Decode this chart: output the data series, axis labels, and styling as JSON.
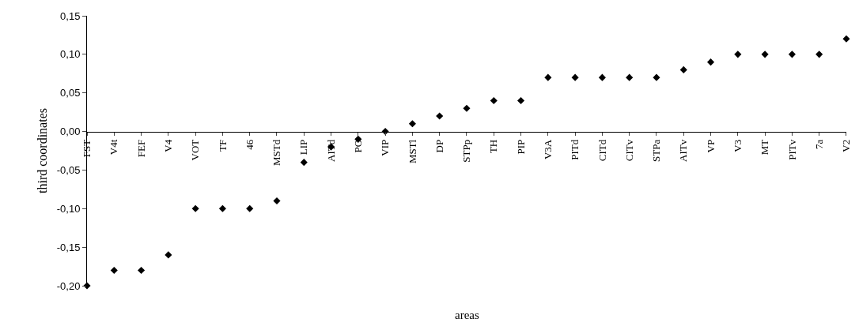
{
  "chart_data": {
    "type": "scatter",
    "xlabel": "areas",
    "ylabel": "third coordinates",
    "categories": [
      "FST",
      "V4t",
      "FEF",
      "V4",
      "VOT",
      "TF",
      "46",
      "MSTd",
      "LIP",
      "AITd",
      "PO",
      "VIP",
      "MSTl",
      "DP",
      "STPp",
      "TH",
      "PIP",
      "V3A",
      "PITd",
      "CITd",
      "CITv",
      "STPa",
      "AITv",
      "VP",
      "V3",
      "MT",
      "PITv",
      "7a",
      "V2"
    ],
    "values": [
      -0.2,
      -0.18,
      -0.18,
      -0.16,
      -0.1,
      -0.1,
      -0.1,
      -0.09,
      -0.04,
      -0.02,
      -0.01,
      0.0,
      0.01,
      0.02,
      0.03,
      0.04,
      0.04,
      0.07,
      0.07,
      0.07,
      0.07,
      0.07,
      0.08,
      0.09,
      0.1,
      0.1,
      0.1,
      0.1,
      0.12
    ],
    "color": "#000000",
    "marker": "diamond",
    "grid": false,
    "legend": false,
    "ylim": [
      -0.2,
      0.15
    ],
    "yticks": [
      {
        "value": -0.2,
        "label": "-0,20"
      },
      {
        "value": -0.15,
        "label": "-0,15"
      },
      {
        "value": -0.1,
        "label": "-0,10"
      },
      {
        "value": -0.05,
        "label": "-0,05"
      },
      {
        "value": 0,
        "label": "0,00"
      },
      {
        "value": 0.05,
        "label": "0,05"
      },
      {
        "value": 0.1,
        "label": "0,10"
      },
      {
        "value": 0.15,
        "label": "0,15"
      }
    ]
  }
}
